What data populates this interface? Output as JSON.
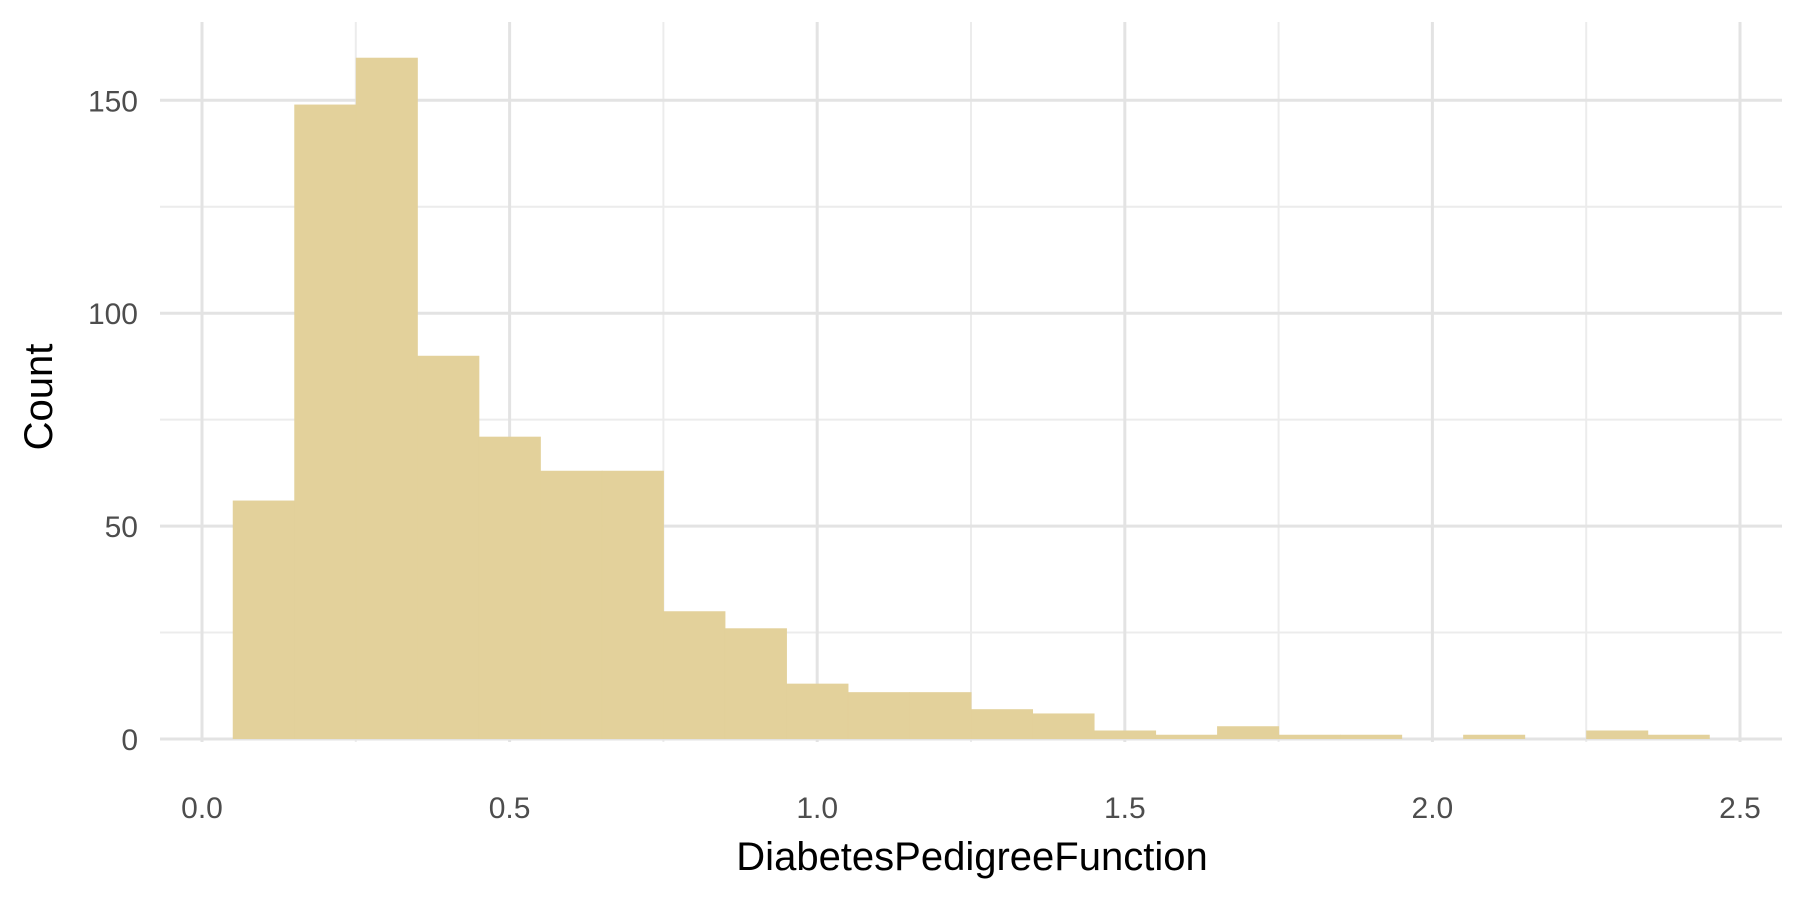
{
  "chart_data": {
    "type": "bar",
    "subtype": "histogram",
    "title": "",
    "xlabel": "DiabetesPedigreeFunction",
    "ylabel": "Count",
    "xlim": [
      0.0,
      2.5
    ],
    "ylim": [
      0,
      160
    ],
    "x_ticks": [
      "0.0",
      "0.5",
      "1.0",
      "1.5",
      "2.0",
      "2.5"
    ],
    "y_ticks": [
      "0",
      "50",
      "100",
      "150"
    ],
    "bin_width": 0.1,
    "bins": [
      {
        "x0": 0.05,
        "x1": 0.15,
        "count": 56
      },
      {
        "x0": 0.15,
        "x1": 0.25,
        "count": 149
      },
      {
        "x0": 0.25,
        "x1": 0.35,
        "count": 160
      },
      {
        "x0": 0.35,
        "x1": 0.45,
        "count": 90
      },
      {
        "x0": 0.45,
        "x1": 0.55,
        "count": 71
      },
      {
        "x0": 0.55,
        "x1": 0.65,
        "count": 63
      },
      {
        "x0": 0.65,
        "x1": 0.75,
        "count": 63
      },
      {
        "x0": 0.75,
        "x1": 0.85,
        "count": 30
      },
      {
        "x0": 0.85,
        "x1": 0.95,
        "count": 26
      },
      {
        "x0": 0.95,
        "x1": 1.05,
        "count": 13
      },
      {
        "x0": 1.05,
        "x1": 1.15,
        "count": 11
      },
      {
        "x0": 1.15,
        "x1": 1.25,
        "count": 11
      },
      {
        "x0": 1.25,
        "x1": 1.35,
        "count": 7
      },
      {
        "x0": 1.35,
        "x1": 1.45,
        "count": 6
      },
      {
        "x0": 1.45,
        "x1": 1.55,
        "count": 2
      },
      {
        "x0": 1.55,
        "x1": 1.65,
        "count": 1
      },
      {
        "x0": 1.65,
        "x1": 1.75,
        "count": 3
      },
      {
        "x0": 1.75,
        "x1": 1.85,
        "count": 1
      },
      {
        "x0": 1.85,
        "x1": 1.95,
        "count": 1
      },
      {
        "x0": 1.95,
        "x1": 2.05,
        "count": 0
      },
      {
        "x0": 2.05,
        "x1": 2.15,
        "count": 1
      },
      {
        "x0": 2.15,
        "x1": 2.25,
        "count": 0
      },
      {
        "x0": 2.25,
        "x1": 2.35,
        "count": 2
      },
      {
        "x0": 2.35,
        "x1": 2.45,
        "count": 1
      }
    ],
    "bar_color": "#e2d099",
    "grid": true,
    "legend": "none"
  }
}
